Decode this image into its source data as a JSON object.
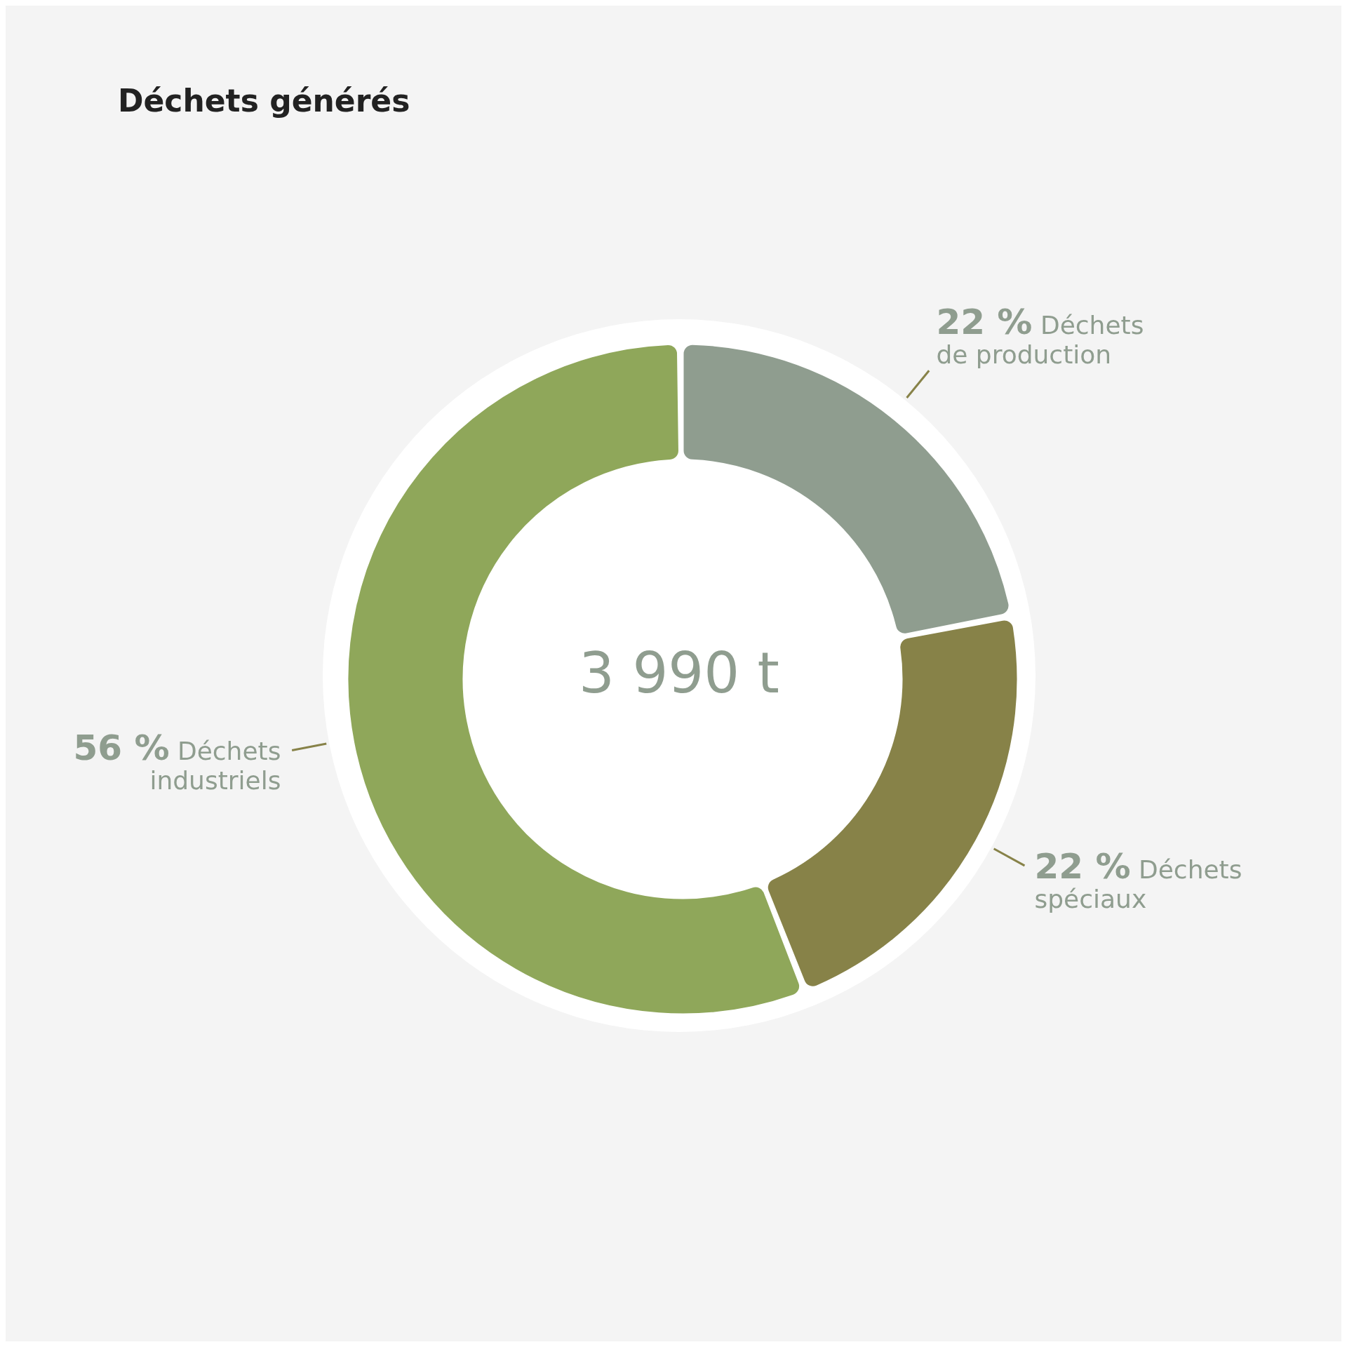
{
  "chart_data": {
    "type": "donut",
    "title": "Déchets générés",
    "categories": [
      "Déchets de production",
      "Déchets spéciaux",
      "Déchets industriels"
    ],
    "values": [
      22,
      22,
      56
    ],
    "value_labels": [
      "22 %",
      "22 %",
      "56 %"
    ],
    "colors": [
      "#8f9d8f",
      "#878248",
      "#8fa75a"
    ],
    "annotations": [
      "3 990 t"
    ],
    "legend": false
  }
}
